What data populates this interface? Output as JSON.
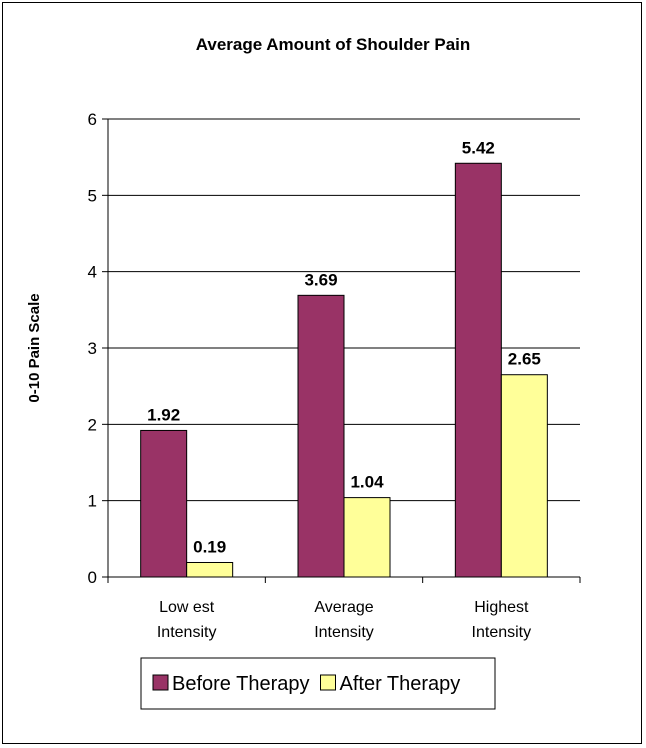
{
  "chart_data": {
    "type": "bar",
    "title": "Average Amount of Shoulder Pain",
    "ylabel": "0-10 Pain Scale",
    "xlabel": "",
    "ylim": [
      0,
      6
    ],
    "yticks": [
      0,
      1,
      2,
      3,
      4,
      5,
      6
    ],
    "grid": true,
    "legend_position": "bottom",
    "categories": [
      [
        "Low est",
        "Intensity"
      ],
      [
        "Average",
        "Intensity"
      ],
      [
        "Highest",
        "Intensity"
      ]
    ],
    "series": [
      {
        "name": "Before Therapy",
        "color": "#993366",
        "values": [
          1.92,
          3.69,
          5.42
        ]
      },
      {
        "name": "After Therapy",
        "color": "#FFFF99",
        "values": [
          0.19,
          1.04,
          2.65
        ]
      }
    ]
  }
}
